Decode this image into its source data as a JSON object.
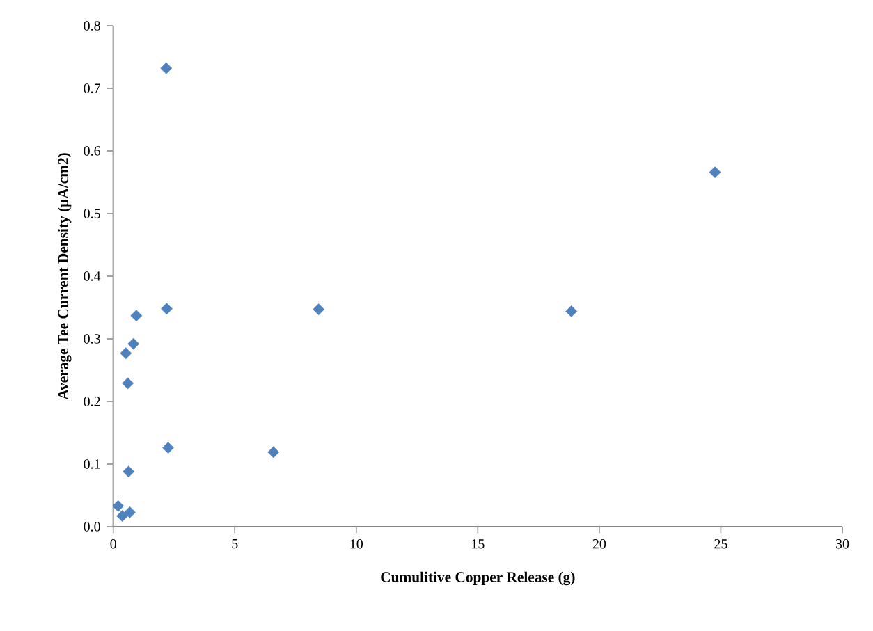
{
  "chart_data": {
    "type": "scatter",
    "xlabel": "Cumulitive Copper Release (g)",
    "ylabel": "Average Tee Current Density (µA/cm2)",
    "series": [
      {
        "color": "#4f81bd",
        "x": [
          2.18,
          24.76,
          8.45,
          18.85,
          2.2,
          0.95,
          0.83,
          0.52,
          0.6,
          2.26,
          6.59,
          0.63,
          0.2,
          0.37,
          0.68
        ],
        "values": [
          0.732,
          0.566,
          0.347,
          0.344,
          0.348,
          0.337,
          0.292,
          0.277,
          0.229,
          0.126,
          0.119,
          0.088,
          0.033,
          0.017,
          0.023
        ]
      }
    ],
    "xlim": [
      0,
      30
    ],
    "xticks": [
      0,
      5,
      10,
      15,
      20,
      25,
      30
    ],
    "ylim": [
      0,
      0.8
    ],
    "yticks": [
      {
        "value": 0,
        "label": "0.0"
      },
      {
        "value": 0.1,
        "label": "0.1"
      },
      {
        "value": 0.2,
        "label": "0.2"
      },
      {
        "value": 0.3,
        "label": "0.3"
      },
      {
        "value": 0.4,
        "label": "0.4"
      },
      {
        "value": 0.5,
        "label": "0.5"
      },
      {
        "value": 0.6,
        "label": "0.6"
      },
      {
        "value": 0.7,
        "label": "0.7"
      },
      {
        "value": 0.8,
        "label": "0.8"
      }
    ],
    "grid": false,
    "marker": "diamond"
  }
}
